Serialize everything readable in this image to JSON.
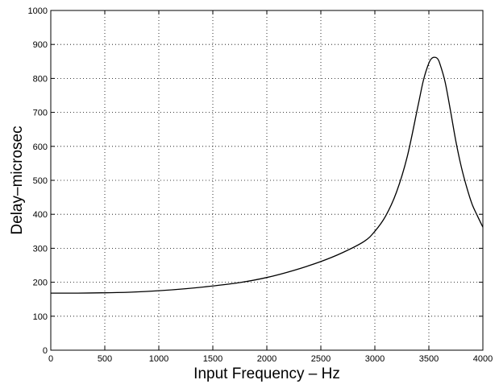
{
  "chart_data": {
    "type": "line",
    "xlabel": "Input Frequency – Hz",
    "ylabel": "Delay–microsec",
    "xlim": [
      0,
      4000
    ],
    "ylim": [
      0,
      1000
    ],
    "xticks": [
      0,
      500,
      1000,
      1500,
      2000,
      2500,
      3000,
      3500,
      4000
    ],
    "yticks": [
      0,
      100,
      200,
      300,
      400,
      500,
      600,
      700,
      800,
      900,
      1000
    ],
    "xtick_labels": [
      "0",
      "500",
      "1000",
      "1500",
      "2000",
      "2500",
      "3000",
      "3500",
      "4000"
    ],
    "ytick_labels": [
      "0",
      "100",
      "200",
      "300",
      "400",
      "500",
      "600",
      "700",
      "800",
      "900",
      "1000"
    ],
    "grid": true,
    "series": [
      {
        "x": [
          0,
          250,
          500,
          750,
          1000,
          1250,
          1500,
          1750,
          2000,
          2250,
          2500,
          2700,
          2900,
          3000,
          3100,
          3200,
          3300,
          3400,
          3450,
          3500,
          3530,
          3560,
          3580,
          3600,
          3650,
          3700,
          3750,
          3800,
          3850,
          3900,
          3950,
          4000
        ],
        "y": [
          168,
          168,
          169,
          171,
          175,
          181,
          189,
          199,
          214,
          235,
          261,
          287,
          320,
          350,
          395,
          465,
          570,
          720,
          795,
          845,
          860,
          862,
          858,
          845,
          790,
          705,
          615,
          540,
          480,
          430,
          395,
          362
        ]
      }
    ]
  }
}
